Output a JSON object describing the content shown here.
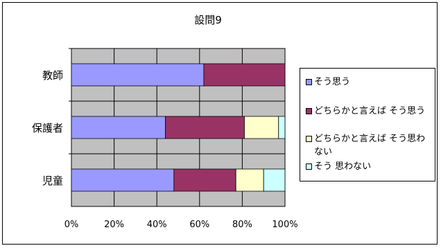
{
  "chart_data": {
    "type": "bar",
    "orientation": "horizontal",
    "stacked": true,
    "percent": true,
    "title": "設問9",
    "xlabel": "",
    "ylabel": "",
    "xlim": [
      0,
      100
    ],
    "xticks": [
      "0%",
      "20%",
      "40%",
      "60%",
      "80%",
      "100%"
    ],
    "grid": true,
    "legend_position": "right",
    "categories": [
      "教師",
      "保護者",
      "児童"
    ],
    "series": [
      {
        "name": "そう思う",
        "color": "#9999ff",
        "values": [
          62,
          44,
          48
        ]
      },
      {
        "name": "どちらかと言えば そう思う",
        "color": "#993366",
        "values": [
          38,
          37,
          29
        ]
      },
      {
        "name": "どちらかと言えば そう思わない",
        "color": "#ffffcc",
        "values": [
          0,
          16,
          13
        ]
      },
      {
        "name": "そう 思わない",
        "color": "#ccffff",
        "values": [
          0,
          3,
          10
        ]
      }
    ]
  }
}
